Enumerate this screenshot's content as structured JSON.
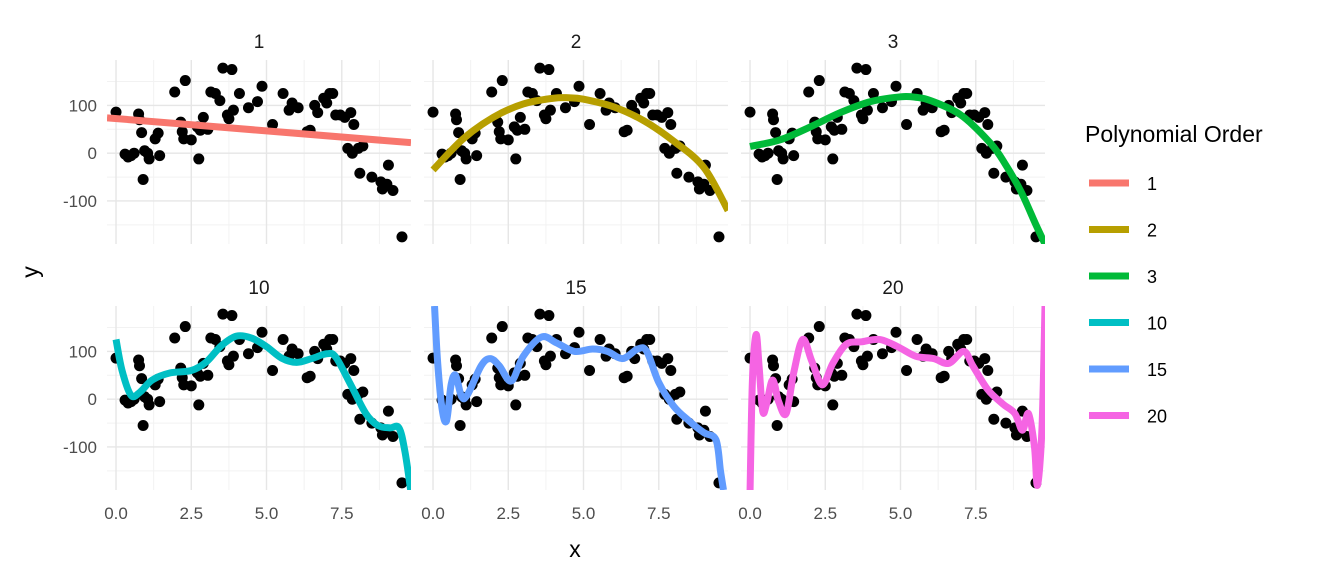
{
  "chart_data": {
    "type": "scatter",
    "title": "",
    "xlabel": "x",
    "ylabel": "y",
    "xlim": [
      -0.3,
      9.8
    ],
    "ylim": [
      -190,
      195
    ],
    "x_ticks": [
      0,
      2.5,
      5,
      7.5
    ],
    "x_tick_labels": [
      "0.0",
      "2.5",
      "5.0",
      "7.5"
    ],
    "y_ticks": [
      -100,
      0,
      100
    ],
    "y_tick_labels": [
      "-100",
      "0",
      "100"
    ],
    "grid": true,
    "legend": {
      "title": "Polynomial Order",
      "position": "right",
      "entries": [
        {
          "label": "1",
          "color": "#F8766D"
        },
        {
          "label": "2",
          "color": "#B79F00"
        },
        {
          "label": "3",
          "color": "#00BA38"
        },
        {
          "label": "10",
          "color": "#00BFC4"
        },
        {
          "label": "15",
          "color": "#619CFF"
        },
        {
          "label": "20",
          "color": "#F564E3"
        }
      ]
    },
    "panels": [
      {
        "label": "1",
        "order": 1,
        "color": "#F8766D",
        "fit": [
          [
            -0.3,
            74
          ],
          [
            9.8,
            22
          ]
        ]
      },
      {
        "label": "2",
        "order": 2,
        "color": "#B79F00",
        "fit": [
          [
            0,
            -35
          ],
          [
            1,
            30
          ],
          [
            2,
            75
          ],
          [
            3,
            103
          ],
          [
            4,
            115
          ],
          [
            4.5,
            116
          ],
          [
            5,
            113
          ],
          [
            6,
            97
          ],
          [
            7,
            68
          ],
          [
            8,
            25
          ],
          [
            9,
            -30
          ],
          [
            9.8,
            -120
          ]
        ]
      },
      {
        "label": "3",
        "order": 3,
        "color": "#00BA38",
        "fit": [
          [
            0,
            14
          ],
          [
            1,
            28
          ],
          [
            2,
            55
          ],
          [
            3,
            85
          ],
          [
            4,
            108
          ],
          [
            5,
            118
          ],
          [
            5.5,
            117
          ],
          [
            6,
            110
          ],
          [
            7,
            80
          ],
          [
            8,
            20
          ],
          [
            8.5,
            -25
          ],
          [
            9,
            -80
          ],
          [
            9.5,
            -150
          ],
          [
            9.8,
            -190
          ]
        ]
      },
      {
        "label": "10",
        "order": 10,
        "color": "#00BFC4",
        "fit": [
          [
            0,
            125
          ],
          [
            0.2,
            60
          ],
          [
            0.5,
            8
          ],
          [
            0.8,
            15
          ],
          [
            1.2,
            40
          ],
          [
            1.8,
            55
          ],
          [
            2.5,
            60
          ],
          [
            3,
            78
          ],
          [
            3.5,
            112
          ],
          [
            4,
            132
          ],
          [
            4.5,
            128
          ],
          [
            5,
            110
          ],
          [
            5.5,
            86
          ],
          [
            6,
            77
          ],
          [
            6.5,
            85
          ],
          [
            7,
            95
          ],
          [
            7.3,
            88
          ],
          [
            7.8,
            30
          ],
          [
            8.3,
            -30
          ],
          [
            8.7,
            -55
          ],
          [
            9.1,
            -60
          ],
          [
            9.4,
            -60
          ],
          [
            9.6,
            -110
          ],
          [
            9.8,
            -195
          ]
        ]
      },
      {
        "label": "15",
        "order": 15,
        "color": "#619CFF",
        "fit": [
          [
            0.05,
            195
          ],
          [
            0.15,
            80
          ],
          [
            0.3,
            -20
          ],
          [
            0.45,
            -45
          ],
          [
            0.6,
            30
          ],
          [
            0.75,
            50
          ],
          [
            0.95,
            5
          ],
          [
            1.15,
            10
          ],
          [
            1.6,
            70
          ],
          [
            1.9,
            85
          ],
          [
            2.2,
            70
          ],
          [
            2.6,
            38
          ],
          [
            3,
            90
          ],
          [
            3.6,
            130
          ],
          [
            4.1,
            118
          ],
          [
            4.7,
            100
          ],
          [
            5.3,
            105
          ],
          [
            5.8,
            100
          ],
          [
            6.3,
            85
          ],
          [
            6.8,
            105
          ],
          [
            7.1,
            100
          ],
          [
            7.5,
            35
          ],
          [
            8,
            -15
          ],
          [
            8.5,
            -45
          ],
          [
            9,
            -70
          ],
          [
            9.4,
            -85
          ],
          [
            9.55,
            -150
          ],
          [
            9.65,
            -190
          ]
        ]
      },
      {
        "label": "20",
        "order": 20,
        "color": "#F564E3",
        "fit": [
          [
            0,
            -195
          ],
          [
            0.08,
            40
          ],
          [
            0.2,
            135
          ],
          [
            0.3,
            70
          ],
          [
            0.42,
            -25
          ],
          [
            0.55,
            -10
          ],
          [
            0.75,
            40
          ],
          [
            0.95,
            -5
          ],
          [
            1.2,
            -30
          ],
          [
            1.45,
            55
          ],
          [
            1.75,
            125
          ],
          [
            2.05,
            80
          ],
          [
            2.4,
            30
          ],
          [
            2.75,
            75
          ],
          [
            3.2,
            115
          ],
          [
            3.7,
            120
          ],
          [
            4.3,
            125
          ],
          [
            4.9,
            110
          ],
          [
            5.5,
            90
          ],
          [
            6.1,
            85
          ],
          [
            6.6,
            75
          ],
          [
            7.1,
            100
          ],
          [
            7.4,
            70
          ],
          [
            7.9,
            20
          ],
          [
            8.4,
            -10
          ],
          [
            8.8,
            -30
          ],
          [
            9.05,
            -65
          ],
          [
            9.25,
            -30
          ],
          [
            9.45,
            -100
          ],
          [
            9.55,
            -180
          ],
          [
            9.7,
            -60
          ],
          [
            9.8,
            195
          ]
        ]
      }
    ],
    "points": [
      [
        0,
        86
      ],
      [
        0.3,
        -2
      ],
      [
        0.4,
        -8
      ],
      [
        0.5,
        -5
      ],
      [
        0.6,
        0
      ],
      [
        0.75,
        82
      ],
      [
        0.78,
        70
      ],
      [
        0.85,
        43
      ],
      [
        0.9,
        -55
      ],
      [
        0.95,
        5
      ],
      [
        1.05,
        0
      ],
      [
        1.1,
        -12
      ],
      [
        1.3,
        30
      ],
      [
        1.4,
        42
      ],
      [
        1.45,
        -5
      ],
      [
        1.95,
        128
      ],
      [
        2.15,
        65
      ],
      [
        2.2,
        45
      ],
      [
        2.25,
        30
      ],
      [
        2.3,
        152
      ],
      [
        2.5,
        28
      ],
      [
        2.7,
        55
      ],
      [
        2.75,
        -12
      ],
      [
        2.8,
        48
      ],
      [
        2.9,
        75
      ],
      [
        3.05,
        50
      ],
      [
        3.15,
        128
      ],
      [
        3.3,
        125
      ],
      [
        3.45,
        110
      ],
      [
        3.55,
        178
      ],
      [
        3.7,
        80
      ],
      [
        3.75,
        72
      ],
      [
        3.85,
        175
      ],
      [
        3.9,
        90
      ],
      [
        4.1,
        125
      ],
      [
        4.4,
        95
      ],
      [
        4.7,
        108
      ],
      [
        4.85,
        140
      ],
      [
        5.2,
        60
      ],
      [
        5.55,
        125
      ],
      [
        5.75,
        90
      ],
      [
        5.85,
        105
      ],
      [
        6.05,
        95
      ],
      [
        6.35,
        45
      ],
      [
        6.45,
        48
      ],
      [
        6.6,
        100
      ],
      [
        6.7,
        85
      ],
      [
        6.9,
        115
      ],
      [
        7,
        105
      ],
      [
        7.1,
        125
      ],
      [
        7.2,
        125
      ],
      [
        7.3,
        80
      ],
      [
        7.45,
        80
      ],
      [
        7.6,
        75
      ],
      [
        7.7,
        10
      ],
      [
        7.8,
        85
      ],
      [
        7.85,
        0
      ],
      [
        7.9,
        60
      ],
      [
        8.05,
        10
      ],
      [
        8.1,
        -42
      ],
      [
        8.2,
        15
      ],
      [
        8.5,
        -50
      ],
      [
        8.8,
        -60
      ],
      [
        8.85,
        -75
      ],
      [
        9,
        -65
      ],
      [
        9.05,
        -25
      ],
      [
        9.2,
        -78
      ],
      [
        9.5,
        -175
      ]
    ]
  }
}
